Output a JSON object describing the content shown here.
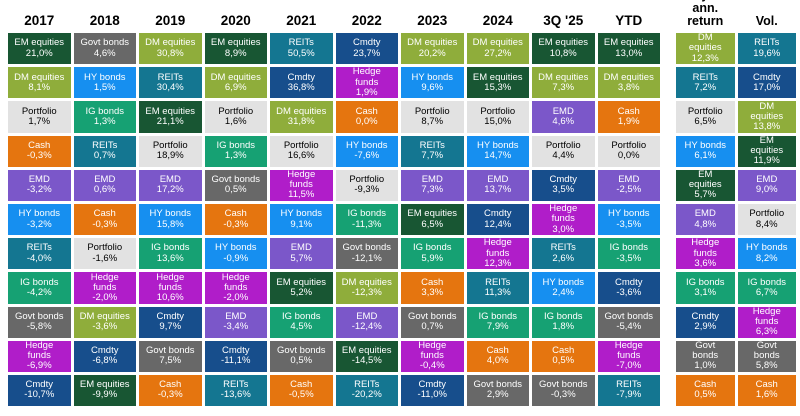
{
  "palette": {
    "EM equities": {
      "bg": "#185633",
      "fg": "#ffffff"
    },
    "DM equities": {
      "bg": "#8fad3b",
      "fg": "#ffffff"
    },
    "Portfolio": {
      "bg": "#e2e2e2",
      "fg": "#000000"
    },
    "Cash": {
      "bg": "#e5750f",
      "fg": "#ffffff"
    },
    "EMD": {
      "bg": "#7b57c9",
      "fg": "#ffffff"
    },
    "HY bonds": {
      "bg": "#168ff0",
      "fg": "#ffffff"
    },
    "IG bonds": {
      "bg": "#16a173",
      "fg": "#ffffff"
    },
    "REITs": {
      "bg": "#147691",
      "fg": "#ffffff"
    },
    "Govt bonds": {
      "bg": "#686868",
      "fg": "#ffffff"
    },
    "Hedge funds": {
      "bg": "#b01dc9",
      "fg": "#ffffff"
    },
    "Cmdty": {
      "bg": "#174e8c",
      "fg": "#ffffff"
    }
  },
  "chart_data": {
    "type": "table",
    "description": "Asset class returns quilt: annual returns ranked best to worst per column, plus 10-year annualised return and volatility",
    "year_columns": [
      {
        "label": "2017",
        "cells": [
          {
            "asset": "EM equities",
            "value": "21,0%"
          },
          {
            "asset": "DM equities",
            "value": "8,1%"
          },
          {
            "asset": "Portfolio",
            "value": "1,7%"
          },
          {
            "asset": "Cash",
            "value": "-0,3%"
          },
          {
            "asset": "EMD",
            "value": "-3,2%"
          },
          {
            "asset": "HY bonds",
            "value": "-3,2%"
          },
          {
            "asset": "REITs",
            "value": "-4,0%"
          },
          {
            "asset": "IG bonds",
            "value": "-4,2%"
          },
          {
            "asset": "Govt bonds",
            "value": "-5,8%"
          },
          {
            "asset": "Hedge funds",
            "value": "-6,9%"
          },
          {
            "asset": "Cmdty",
            "value": "-10,7%"
          }
        ]
      },
      {
        "label": "2018",
        "cells": [
          {
            "asset": "Govt bonds",
            "value": "4,6%"
          },
          {
            "asset": "HY bonds",
            "value": "1,5%"
          },
          {
            "asset": "IG bonds",
            "value": "1,3%"
          },
          {
            "asset": "REITs",
            "value": "0,7%"
          },
          {
            "asset": "EMD",
            "value": "0,6%"
          },
          {
            "asset": "Cash",
            "value": "-0,3%"
          },
          {
            "asset": "Portfolio",
            "value": "-1,6%"
          },
          {
            "asset": "Hedge funds",
            "value": "-2,0%"
          },
          {
            "asset": "DM equities",
            "value": "-3,6%"
          },
          {
            "asset": "Cmdty",
            "value": "-6,8%"
          },
          {
            "asset": "EM equities",
            "value": "-9,9%"
          }
        ]
      },
      {
        "label": "2019",
        "cells": [
          {
            "asset": "DM equities",
            "value": "30,8%"
          },
          {
            "asset": "REITs",
            "value": "30,4%"
          },
          {
            "asset": "EM equities",
            "value": "21,1%"
          },
          {
            "asset": "Portfolio",
            "value": "18,9%"
          },
          {
            "asset": "EMD",
            "value": "17,2%"
          },
          {
            "asset": "HY bonds",
            "value": "15,8%"
          },
          {
            "asset": "IG bonds",
            "value": "13,6%"
          },
          {
            "asset": "Hedge funds",
            "value": "10,6%"
          },
          {
            "asset": "Cmdty",
            "value": "9,7%"
          },
          {
            "asset": "Govt bonds",
            "value": "7,5%"
          },
          {
            "asset": "Cash",
            "value": "-0,3%"
          }
        ]
      },
      {
        "label": "2020",
        "cells": [
          {
            "asset": "EM equities",
            "value": "8,9%"
          },
          {
            "asset": "DM equities",
            "value": "6,9%"
          },
          {
            "asset": "Portfolio",
            "value": "1,6%"
          },
          {
            "asset": "IG bonds",
            "value": "1,3%"
          },
          {
            "asset": "Govt bonds",
            "value": "0,5%"
          },
          {
            "asset": "Cash",
            "value": "-0,3%"
          },
          {
            "asset": "HY bonds",
            "value": "-0,9%"
          },
          {
            "asset": "Hedge funds",
            "value": "-2,0%"
          },
          {
            "asset": "EMD",
            "value": "-3,4%"
          },
          {
            "asset": "Cmdty",
            "value": "-11,1%"
          },
          {
            "asset": "REITs",
            "value": "-13,6%"
          }
        ]
      },
      {
        "label": "2021",
        "cells": [
          {
            "asset": "REITs",
            "value": "50,5%"
          },
          {
            "asset": "Cmdty",
            "value": "36,8%"
          },
          {
            "asset": "DM equities",
            "value": "31,8%"
          },
          {
            "asset": "Portfolio",
            "value": "16,6%"
          },
          {
            "asset": "Hedge funds",
            "value": "11,5%"
          },
          {
            "asset": "HY bonds",
            "value": "9,1%"
          },
          {
            "asset": "EMD",
            "value": "5,7%"
          },
          {
            "asset": "EM equities",
            "value": "5,2%"
          },
          {
            "asset": "IG bonds",
            "value": "4,5%"
          },
          {
            "asset": "Govt bonds",
            "value": "0,5%"
          },
          {
            "asset": "Cash",
            "value": "-0,5%"
          }
        ]
      },
      {
        "label": "2022",
        "cells": [
          {
            "asset": "Cmdty",
            "value": "23,7%"
          },
          {
            "asset": "Hedge funds",
            "value": "1,9%"
          },
          {
            "asset": "Cash",
            "value": "0,0%"
          },
          {
            "asset": "HY bonds",
            "value": "-7,6%"
          },
          {
            "asset": "Portfolio",
            "value": "-9,3%"
          },
          {
            "asset": "IG bonds",
            "value": "-11,3%"
          },
          {
            "asset": "Govt bonds",
            "value": "-12,1%"
          },
          {
            "asset": "DM equities",
            "value": "-12,3%"
          },
          {
            "asset": "EMD",
            "value": "-12,4%"
          },
          {
            "asset": "EM equities",
            "value": "-14,5%"
          },
          {
            "asset": "REITs",
            "value": "-20,2%"
          }
        ]
      },
      {
        "label": "2023",
        "cells": [
          {
            "asset": "DM equities",
            "value": "20,2%"
          },
          {
            "asset": "HY bonds",
            "value": "9,6%"
          },
          {
            "asset": "Portfolio",
            "value": "8,7%"
          },
          {
            "asset": "REITs",
            "value": "7,7%"
          },
          {
            "asset": "EMD",
            "value": "7,3%"
          },
          {
            "asset": "EM equities",
            "value": "6,5%"
          },
          {
            "asset": "IG bonds",
            "value": "5,9%"
          },
          {
            "asset": "Cash",
            "value": "3,3%"
          },
          {
            "asset": "Govt bonds",
            "value": "0,7%"
          },
          {
            "asset": "Hedge funds",
            "value": "-0,4%"
          },
          {
            "asset": "Cmdty",
            "value": "-11,0%"
          }
        ]
      },
      {
        "label": "2024",
        "cells": [
          {
            "asset": "DM equities",
            "value": "27,2%"
          },
          {
            "asset": "EM equities",
            "value": "15,3%"
          },
          {
            "asset": "Portfolio",
            "value": "15,0%"
          },
          {
            "asset": "HY bonds",
            "value": "14,7%"
          },
          {
            "asset": "EMD",
            "value": "13,7%"
          },
          {
            "asset": "Cmdty",
            "value": "12,4%"
          },
          {
            "asset": "Hedge funds",
            "value": "12,3%"
          },
          {
            "asset": "REITs",
            "value": "11,3%"
          },
          {
            "asset": "IG bonds",
            "value": "7,9%"
          },
          {
            "asset": "Cash",
            "value": "4,0%"
          },
          {
            "asset": "Govt bonds",
            "value": "2,9%"
          }
        ]
      },
      {
        "label": "3Q '25",
        "cells": [
          {
            "asset": "EM equities",
            "value": "10,8%"
          },
          {
            "asset": "DM equities",
            "value": "7,3%"
          },
          {
            "asset": "EMD",
            "value": "4,6%"
          },
          {
            "asset": "Portfolio",
            "value": "4,4%"
          },
          {
            "asset": "Cmdty",
            "value": "3,5%"
          },
          {
            "asset": "Hedge funds",
            "value": "3,0%"
          },
          {
            "asset": "REITs",
            "value": "2,6%"
          },
          {
            "asset": "HY bonds",
            "value": "2,4%"
          },
          {
            "asset": "IG bonds",
            "value": "1,8%"
          },
          {
            "asset": "Cash",
            "value": "0,5%"
          },
          {
            "asset": "Govt bonds",
            "value": "-0,3%"
          }
        ]
      },
      {
        "label": "YTD",
        "cells": [
          {
            "asset": "EM equities",
            "value": "13,0%"
          },
          {
            "asset": "DM equities",
            "value": "3,8%"
          },
          {
            "asset": "Cash",
            "value": "1,9%"
          },
          {
            "asset": "Portfolio",
            "value": "0,0%"
          },
          {
            "asset": "EMD",
            "value": "-2,5%"
          },
          {
            "asset": "HY bonds",
            "value": "-3,5%"
          },
          {
            "asset": "IG bonds",
            "value": "-3,5%"
          },
          {
            "asset": "Cmdty",
            "value": "-3,6%"
          },
          {
            "asset": "Govt bonds",
            "value": "-5,4%"
          },
          {
            "asset": "Hedge funds",
            "value": "-7,0%"
          },
          {
            "asset": "REITs",
            "value": "-7,9%"
          }
        ]
      }
    ],
    "stat_columns": [
      {
        "label": "10-year\nann. return",
        "cells": [
          {
            "asset": "DM equities",
            "value": "12,3%"
          },
          {
            "asset": "REITs",
            "value": "7,2%"
          },
          {
            "asset": "Portfolio",
            "value": "6,5%"
          },
          {
            "asset": "HY bonds",
            "value": "6,1%"
          },
          {
            "asset": "EM equities",
            "value": "5,7%"
          },
          {
            "asset": "EMD",
            "value": "4,8%"
          },
          {
            "asset": "Hedge funds",
            "value": "3,6%"
          },
          {
            "asset": "IG bonds",
            "value": "3,1%"
          },
          {
            "asset": "Cmdty",
            "value": "2,9%"
          },
          {
            "asset": "Govt bonds",
            "value": "1,0%"
          },
          {
            "asset": "Cash",
            "value": "0,5%"
          }
        ]
      },
      {
        "label": "Vol.",
        "cells": [
          {
            "asset": "REITs",
            "value": "19,6%"
          },
          {
            "asset": "Cmdty",
            "value": "17,0%"
          },
          {
            "asset": "DM equities",
            "value": "13,8%"
          },
          {
            "asset": "EM equities",
            "value": "11,9%"
          },
          {
            "asset": "EMD",
            "value": "9,0%"
          },
          {
            "asset": "Portfolio",
            "value": "8,4%"
          },
          {
            "asset": "HY bonds",
            "value": "8,2%"
          },
          {
            "asset": "IG bonds",
            "value": "6,7%"
          },
          {
            "asset": "Hedge funds",
            "value": "6,3%"
          },
          {
            "asset": "Govt bonds",
            "value": "5,8%"
          },
          {
            "asset": "Cash",
            "value": "1,6%"
          }
        ]
      }
    ]
  }
}
